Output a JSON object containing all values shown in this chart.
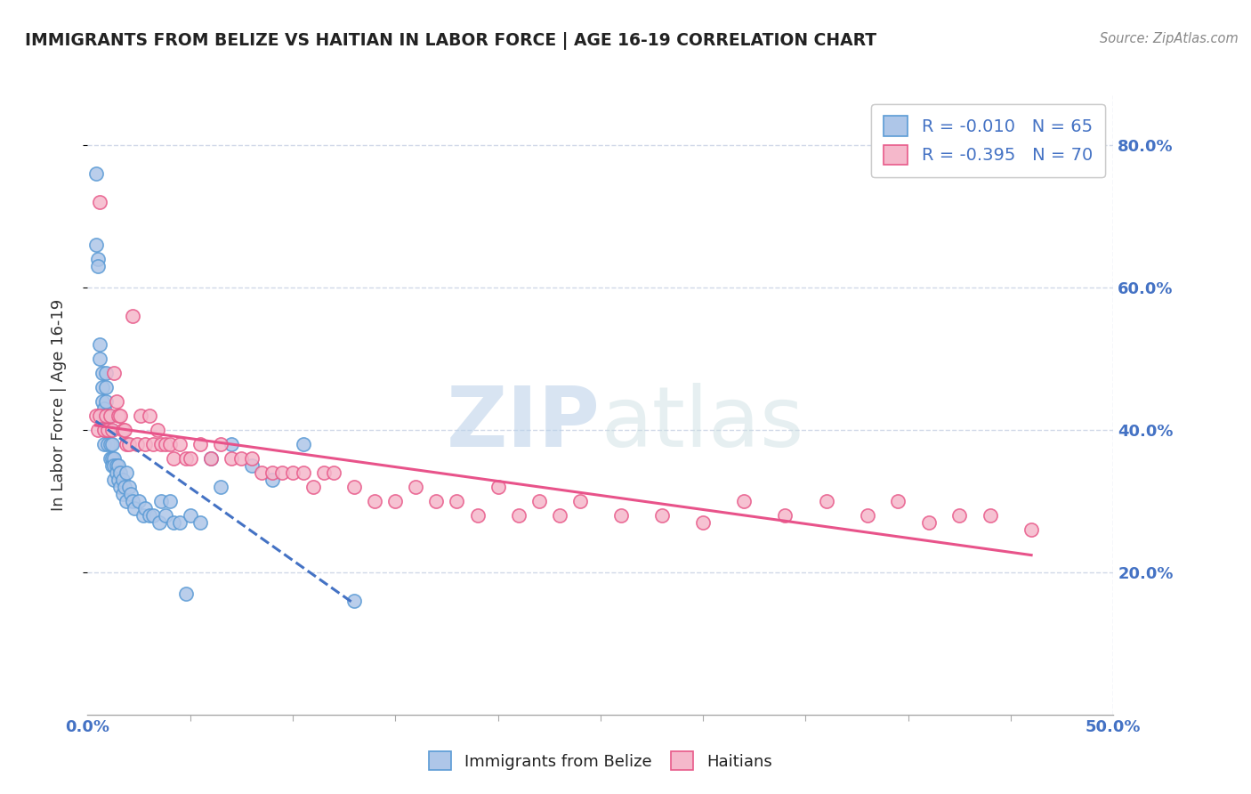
{
  "title": "IMMIGRANTS FROM BELIZE VS HAITIAN IN LABOR FORCE | AGE 16-19 CORRELATION CHART",
  "source_text": "Source: ZipAtlas.com",
  "ylabel": "In Labor Force | Age 16-19",
  "xlim": [
    0.0,
    0.5
  ],
  "ylim": [
    0.0,
    0.87
  ],
  "x_ticks_major": [
    0.0,
    0.5
  ],
  "x_tick_labels": [
    "0.0%",
    "50.0%"
  ],
  "y_ticks": [
    0.2,
    0.4,
    0.6,
    0.8
  ],
  "y_tick_labels": [
    "20.0%",
    "40.0%",
    "60.0%",
    "80.0%"
  ],
  "belize_color": "#aec6e8",
  "haitian_color": "#f5b8cb",
  "belize_edge_color": "#5b9bd5",
  "haitian_edge_color": "#e85a8a",
  "belize_line_color": "#4472c4",
  "haitian_line_color": "#e8538a",
  "R_belize": -0.01,
  "N_belize": 65,
  "R_haitian": -0.395,
  "N_haitian": 70,
  "belize_scatter_x": [
    0.004,
    0.004,
    0.005,
    0.005,
    0.006,
    0.006,
    0.007,
    0.007,
    0.007,
    0.008,
    0.008,
    0.008,
    0.008,
    0.009,
    0.009,
    0.009,
    0.009,
    0.01,
    0.01,
    0.01,
    0.011,
    0.011,
    0.011,
    0.012,
    0.012,
    0.012,
    0.013,
    0.013,
    0.013,
    0.014,
    0.014,
    0.015,
    0.015,
    0.016,
    0.016,
    0.017,
    0.017,
    0.018,
    0.019,
    0.019,
    0.02,
    0.021,
    0.022,
    0.023,
    0.025,
    0.027,
    0.028,
    0.03,
    0.032,
    0.035,
    0.036,
    0.038,
    0.04,
    0.042,
    0.045,
    0.048,
    0.05,
    0.055,
    0.06,
    0.065,
    0.07,
    0.08,
    0.09,
    0.105,
    0.13
  ],
  "belize_scatter_y": [
    0.76,
    0.66,
    0.64,
    0.63,
    0.52,
    0.5,
    0.48,
    0.46,
    0.44,
    0.43,
    0.42,
    0.4,
    0.38,
    0.48,
    0.46,
    0.44,
    0.42,
    0.42,
    0.4,
    0.38,
    0.4,
    0.38,
    0.36,
    0.38,
    0.36,
    0.35,
    0.36,
    0.35,
    0.33,
    0.35,
    0.34,
    0.35,
    0.33,
    0.34,
    0.32,
    0.33,
    0.31,
    0.32,
    0.34,
    0.3,
    0.32,
    0.31,
    0.3,
    0.29,
    0.3,
    0.28,
    0.29,
    0.28,
    0.28,
    0.27,
    0.3,
    0.28,
    0.3,
    0.27,
    0.27,
    0.17,
    0.28,
    0.27,
    0.36,
    0.32,
    0.38,
    0.35,
    0.33,
    0.38,
    0.16
  ],
  "haitian_scatter_x": [
    0.004,
    0.005,
    0.006,
    0.006,
    0.008,
    0.009,
    0.01,
    0.011,
    0.012,
    0.013,
    0.014,
    0.015,
    0.016,
    0.017,
    0.018,
    0.019,
    0.02,
    0.022,
    0.024,
    0.026,
    0.028,
    0.03,
    0.032,
    0.034,
    0.036,
    0.038,
    0.04,
    0.042,
    0.045,
    0.048,
    0.05,
    0.055,
    0.06,
    0.065,
    0.07,
    0.075,
    0.08,
    0.085,
    0.09,
    0.095,
    0.1,
    0.105,
    0.11,
    0.115,
    0.12,
    0.13,
    0.14,
    0.15,
    0.16,
    0.17,
    0.18,
    0.19,
    0.2,
    0.21,
    0.22,
    0.23,
    0.24,
    0.26,
    0.28,
    0.3,
    0.32,
    0.34,
    0.36,
    0.38,
    0.395,
    0.41,
    0.425,
    0.44,
    0.46
  ],
  "haitian_scatter_y": [
    0.42,
    0.4,
    0.72,
    0.42,
    0.4,
    0.42,
    0.4,
    0.42,
    0.4,
    0.48,
    0.44,
    0.42,
    0.42,
    0.4,
    0.4,
    0.38,
    0.38,
    0.56,
    0.38,
    0.42,
    0.38,
    0.42,
    0.38,
    0.4,
    0.38,
    0.38,
    0.38,
    0.36,
    0.38,
    0.36,
    0.36,
    0.38,
    0.36,
    0.38,
    0.36,
    0.36,
    0.36,
    0.34,
    0.34,
    0.34,
    0.34,
    0.34,
    0.32,
    0.34,
    0.34,
    0.32,
    0.3,
    0.3,
    0.32,
    0.3,
    0.3,
    0.28,
    0.32,
    0.28,
    0.3,
    0.28,
    0.3,
    0.28,
    0.28,
    0.27,
    0.3,
    0.28,
    0.3,
    0.28,
    0.3,
    0.27,
    0.28,
    0.28,
    0.26
  ],
  "watermark_zip": "ZIP",
  "watermark_atlas": "atlas",
  "background_color": "#ffffff",
  "grid_color": "#d0d8e8",
  "tick_color": "#4472c4"
}
